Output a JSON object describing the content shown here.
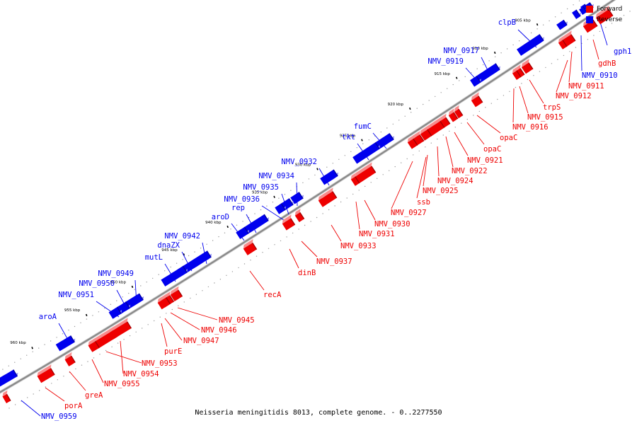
{
  "caption": "Neisseria meningitidis 8013, complete genome. - 0..2277550",
  "legend": [
    {
      "label": "Forward",
      "color": "#ee0000"
    },
    {
      "label": "Reverse",
      "color": "#0000ee"
    }
  ],
  "colors": {
    "forward": "#ee0000",
    "reverse": "#0000ee",
    "backbone": "#888888"
  },
  "ticks": [
    "905 kbp",
    "910 kbp",
    "915 kbp",
    "920 kbp",
    "925 kbp",
    "930 kbp",
    "935 kbp",
    "940 kbp",
    "945 kbp",
    "950 kbp",
    "955 kbp",
    "960 kbp"
  ],
  "reverse_genes": [
    "gph1",
    "NMV_0910",
    "clpB",
    "NMV_0917",
    "NMV_0919",
    "fumC",
    "tkt",
    "NMV_0932",
    "NMV_0934",
    "NMV_0935",
    "NMV_0936",
    "rep",
    "aroD",
    "NMV_0942",
    "dnaZX",
    "mutL",
    "NMV_0949",
    "NMV_0950",
    "NMV_0951",
    "aroA",
    "NMV_0959"
  ],
  "forward_genes": [
    "gdhB",
    "NMV_0911",
    "NMV_0912",
    "trpS",
    "NMV_0915",
    "NMV_0916",
    "opaC",
    "opaC",
    "NMV_0921",
    "NMV_0922",
    "NMV_0924",
    "NMV_0925",
    "ssb",
    "NMV_0927",
    "NMV_0930",
    "NMV_0931",
    "NMV_0933",
    "NMV_0937",
    "dinB",
    "recA",
    "NMV_0945",
    "NMV_0946",
    "NMV_0947",
    "purE",
    "NMV_0953",
    "NMV_0954",
    "NMV_0955",
    "greA",
    "porA"
  ]
}
